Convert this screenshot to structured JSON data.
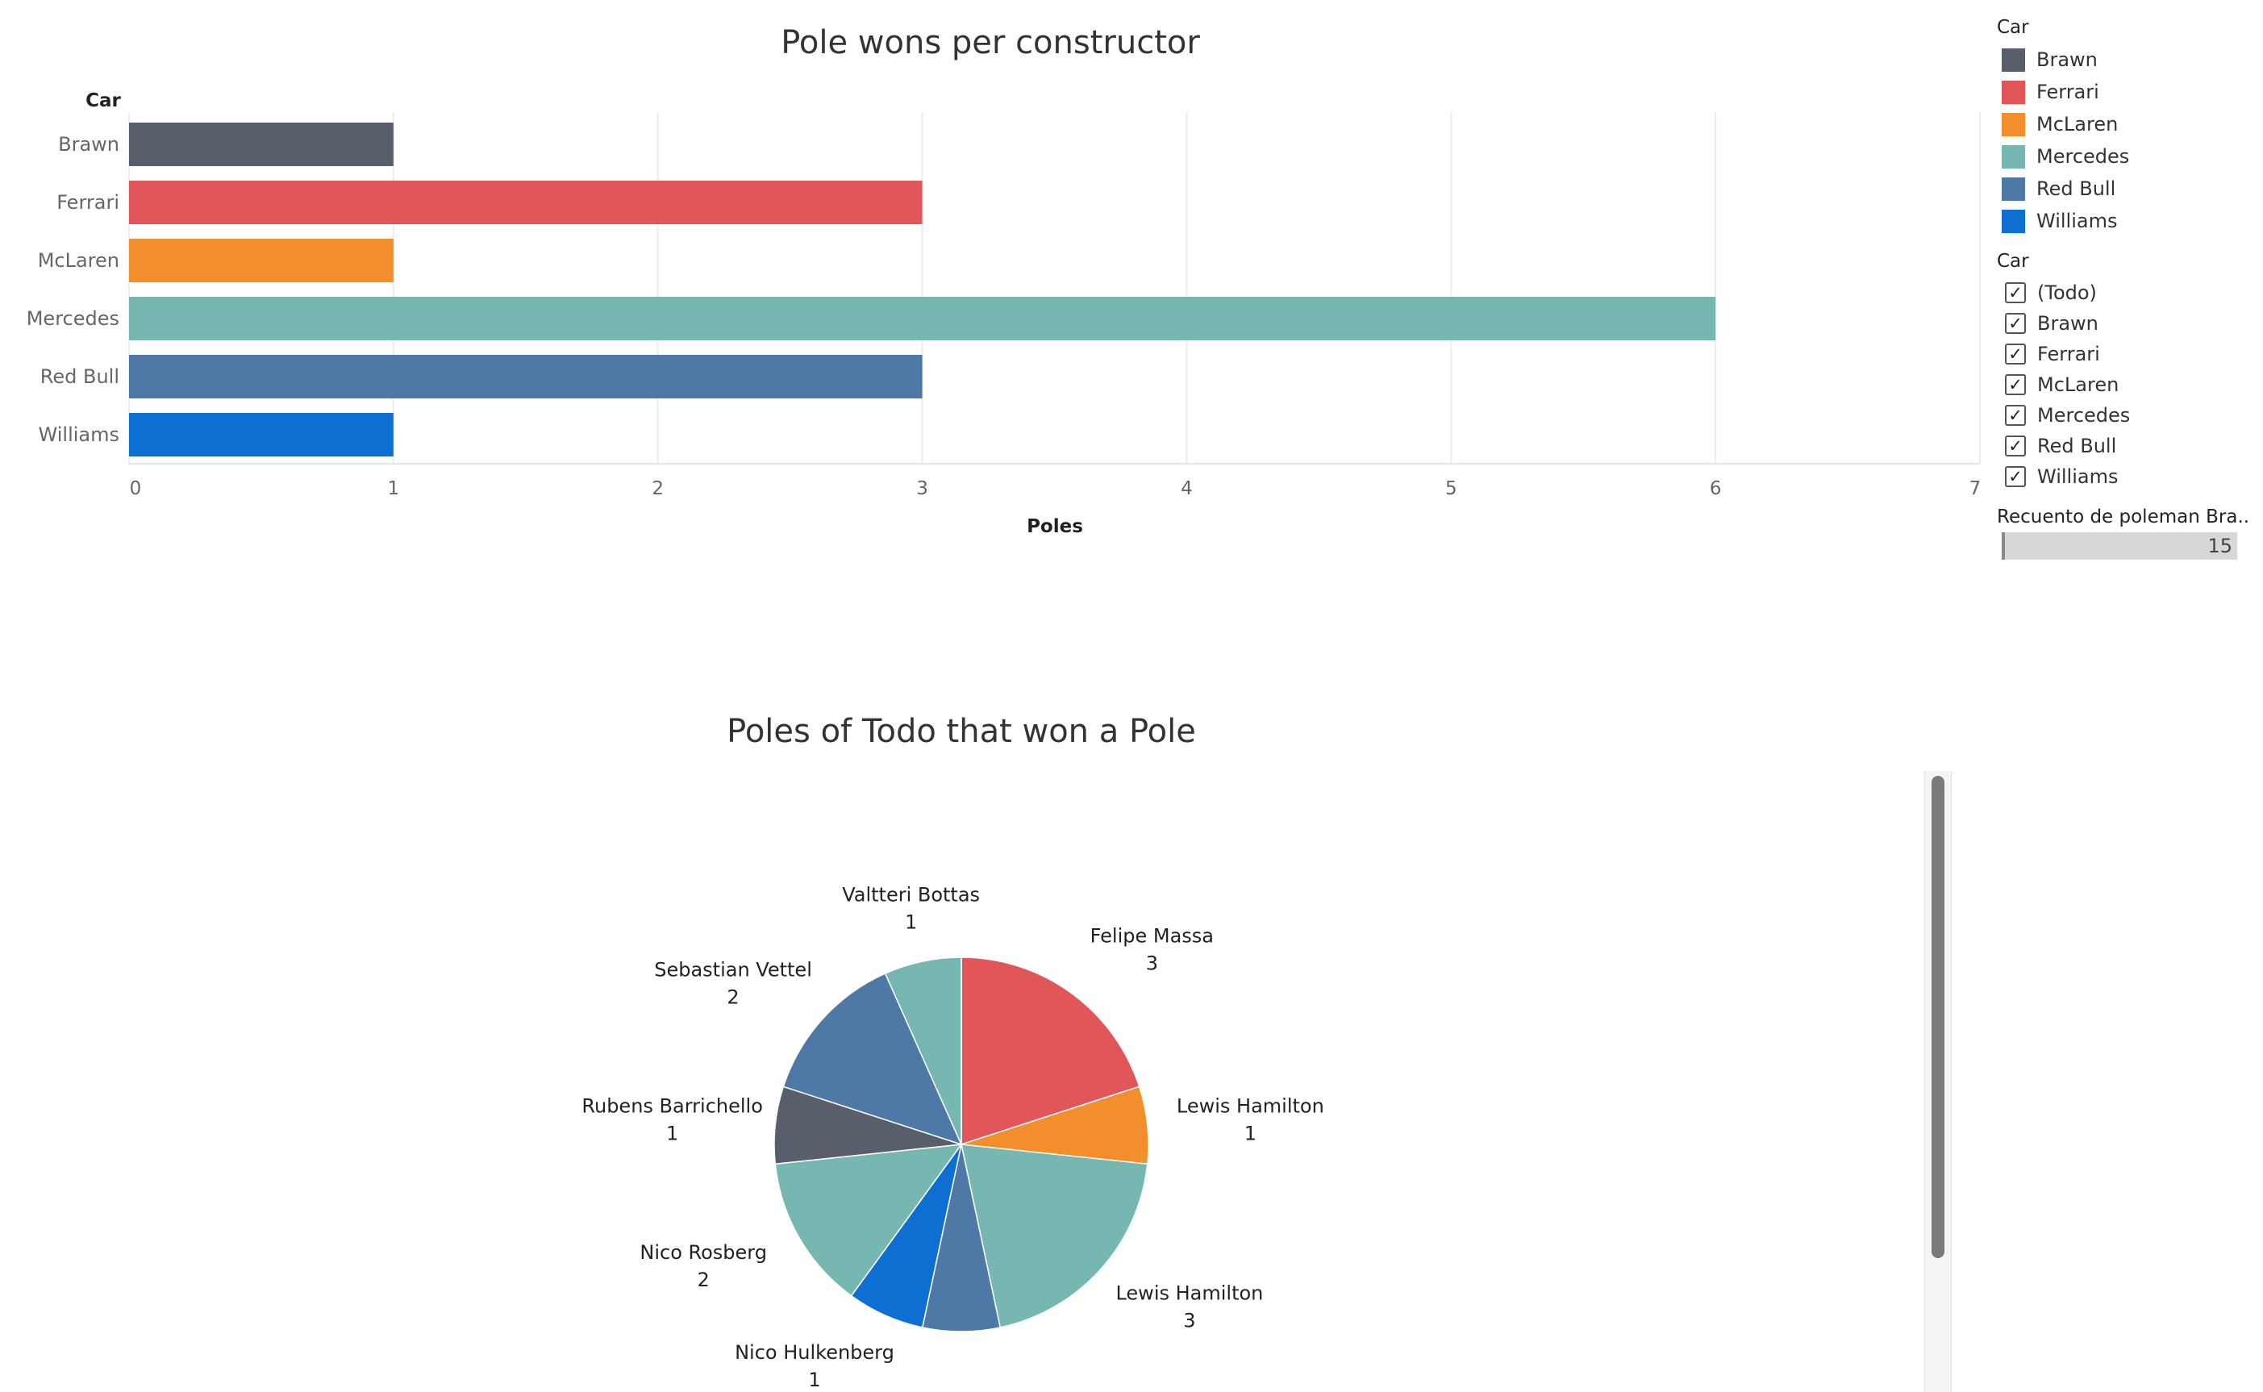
{
  "bar_chart": {
    "title": "Pole wons per constructor",
    "y_header": "Car",
    "xlabel": "Poles",
    "ticks": [
      "0",
      "1",
      "2",
      "3",
      "4",
      "5",
      "6",
      "7"
    ]
  },
  "pie_chart": {
    "title": "Poles of Todo that won a Pole"
  },
  "legend": {
    "title": "Car",
    "items": [
      {
        "label": "Brawn",
        "color": "#585f6b"
      },
      {
        "label": "Ferrari",
        "color": "#e15759"
      },
      {
        "label": "McLaren",
        "color": "#f28e2b"
      },
      {
        "label": "Mercedes",
        "color": "#76b7b2"
      },
      {
        "label": "Red Bull",
        "color": "#4e79a7"
      },
      {
        "label": "Williams",
        "color": "#0d6fd1"
      }
    ]
  },
  "filter": {
    "title": "Car",
    "items": [
      {
        "label": "(Todo)",
        "checked": true
      },
      {
        "label": "Brawn",
        "checked": true
      },
      {
        "label": "Ferrari",
        "checked": true
      },
      {
        "label": "McLaren",
        "checked": true
      },
      {
        "label": "Mercedes",
        "checked": true
      },
      {
        "label": "Red Bull",
        "checked": true
      },
      {
        "label": "Williams",
        "checked": true
      }
    ],
    "check_glyph": "✓"
  },
  "count": {
    "title": "Recuento de poleman Bra..",
    "value": "15"
  },
  "chart_data": [
    {
      "type": "bar",
      "orientation": "horizontal",
      "title": "Pole wons per constructor",
      "xlabel": "Poles",
      "ylabel": "Car",
      "categories": [
        "Brawn",
        "Ferrari",
        "McLaren",
        "Mercedes",
        "Red Bull",
        "Williams"
      ],
      "values": [
        1,
        3,
        1,
        6,
        3,
        1
      ],
      "colors": [
        "#585f6b",
        "#e15759",
        "#f28e2b",
        "#76b7b2",
        "#4e79a7",
        "#0d6fd1"
      ],
      "xlim": [
        0,
        7
      ],
      "grid": true
    },
    {
      "type": "pie",
      "title": "Poles of Todo that won a Pole",
      "slices": [
        {
          "label": "Felipe Massa",
          "value": 3,
          "constructor": "Ferrari",
          "color": "#e15759"
        },
        {
          "label": "Lewis Hamilton",
          "value": 1,
          "constructor": "McLaren",
          "color": "#f28e2b"
        },
        {
          "label": "Lewis Hamilton",
          "value": 3,
          "constructor": "Mercedes",
          "color": "#76b7b2"
        },
        {
          "label": "",
          "value": 1,
          "constructor": "Red Bull",
          "color": "#4e79a7"
        },
        {
          "label": "Nico Hulkenberg",
          "value": 1,
          "constructor": "Williams",
          "color": "#0d6fd1"
        },
        {
          "label": "Nico Rosberg",
          "value": 2,
          "constructor": "Mercedes",
          "color": "#76b7b2"
        },
        {
          "label": "Rubens Barrichello",
          "value": 1,
          "constructor": "Brawn",
          "color": "#585f6b"
        },
        {
          "label": "Sebastian Vettel",
          "value": 2,
          "constructor": "Red Bull",
          "color": "#4e79a7"
        },
        {
          "label": "Valtteri Bottas",
          "value": 1,
          "constructor": "Mercedes",
          "color": "#76b7b2"
        }
      ]
    }
  ]
}
